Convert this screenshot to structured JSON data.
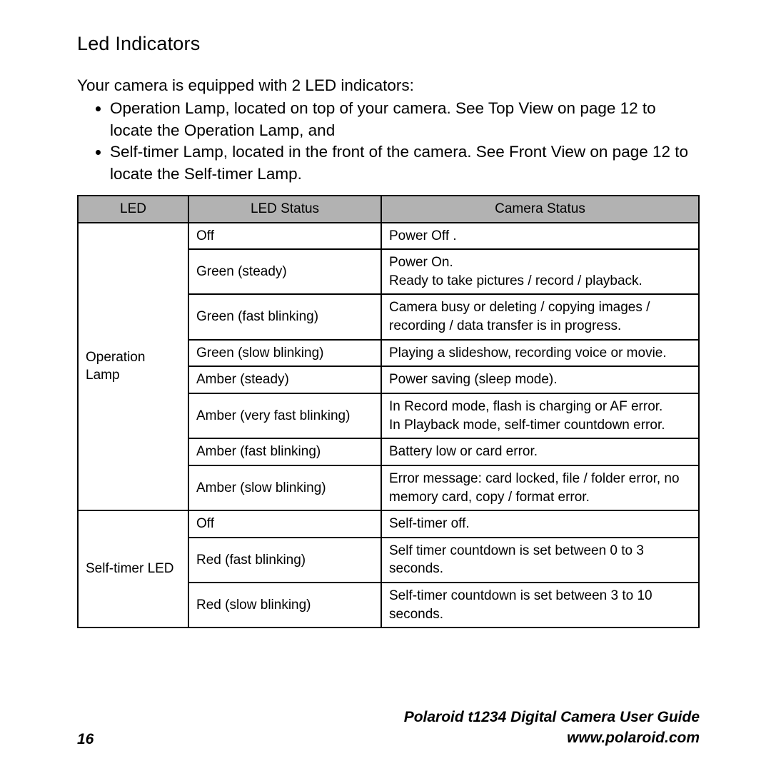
{
  "heading": "Led Indicators",
  "intro": "Your camera is equipped with 2 LED indicators:",
  "bullets": [
    "Operation Lamp, located on top of your camera. See  Top View  on page 12  to locate the Operation Lamp, and",
    "Self-timer Lamp, located in the front of the camera. See  Front View  on page 12  to locate the Self-timer Lamp."
  ],
  "table": {
    "headers": {
      "col1": "LED",
      "col2": "LED Status",
      "col3": "Camera Status"
    },
    "header_bg": "#b2b2b2",
    "border_color": "#000000",
    "groups": [
      {
        "led": "Operation Lamp",
        "rows": [
          {
            "status": "Off",
            "camera": "Power Off ."
          },
          {
            "status": "Green (steady)",
            "camera": "Power On.\nReady to take pictures / record / playback."
          },
          {
            "status": "Green (fast blinking)",
            "camera": "Camera busy or deleting / copying images / recording / data transfer is in progress.",
            "justify": true
          },
          {
            "status": "Green (slow blinking)",
            "camera": "Playing a slideshow, recording voice or movie.",
            "justify": true
          },
          {
            "status": "Amber (steady)",
            "camera": "Power saving (sleep mode)."
          },
          {
            "status": "Amber (very fast blinking)",
            "camera": "In Record mode, flash is charging or AF error.\nIn Playback mode, self-timer countdown error.",
            "justify": true
          },
          {
            "status": "Amber (fast blinking)",
            "camera": "Battery low or card error."
          },
          {
            "status": "Amber (slow blinking)",
            "camera": "Error message: card locked, file / folder error, no memory card, copy / format error."
          }
        ]
      },
      {
        "led": "Self-timer LED",
        "rows": [
          {
            "status": "Off",
            "camera": "Self-timer off."
          },
          {
            "status": "Red (fast blinking)",
            "camera": "Self timer countdown is set between 0 to 3 seconds."
          },
          {
            "status": "Red (slow blinking)",
            "camera": "Self-timer countdown is set between 3 to 10 seconds."
          }
        ]
      }
    ]
  },
  "footer": {
    "page_number": "16",
    "guide_title": "Polaroid t1234 Digital Camera User Guide",
    "guide_url": "www.polaroid.com"
  }
}
